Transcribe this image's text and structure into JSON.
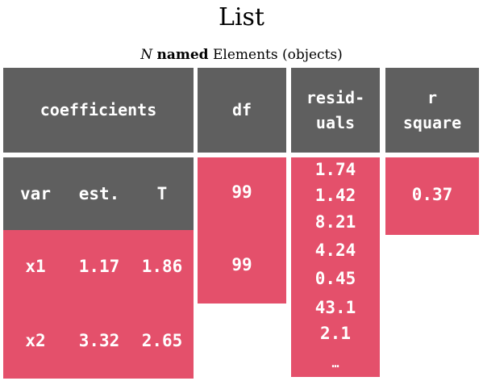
{
  "title": "List",
  "subtitle": {
    "n": "N",
    "bold": "named",
    "rest": "Elements (objects)"
  },
  "headers": {
    "coefficients": "coefficients",
    "df": "df",
    "residuals_line1": "resid-",
    "residuals_line2": "uals",
    "rsquare_line1": "r",
    "rsquare_line2": "square"
  },
  "coef_table": {
    "columns": [
      "var",
      "est.",
      "T"
    ],
    "rows": [
      {
        "var": "x1",
        "est": "1.17",
        "t": "1.86"
      },
      {
        "var": "x2",
        "est": "3.32",
        "t": "2.65"
      }
    ]
  },
  "df_values": [
    "99",
    "99"
  ],
  "residuals": [
    "1.74",
    "1.42",
    "8.21",
    "4.24",
    "0.45",
    "43.1",
    "2.1",
    "…"
  ],
  "r_square": "0.37",
  "colors": {
    "header": "#5f5f5f",
    "element": "#e4506b",
    "text": "#ffffff"
  }
}
